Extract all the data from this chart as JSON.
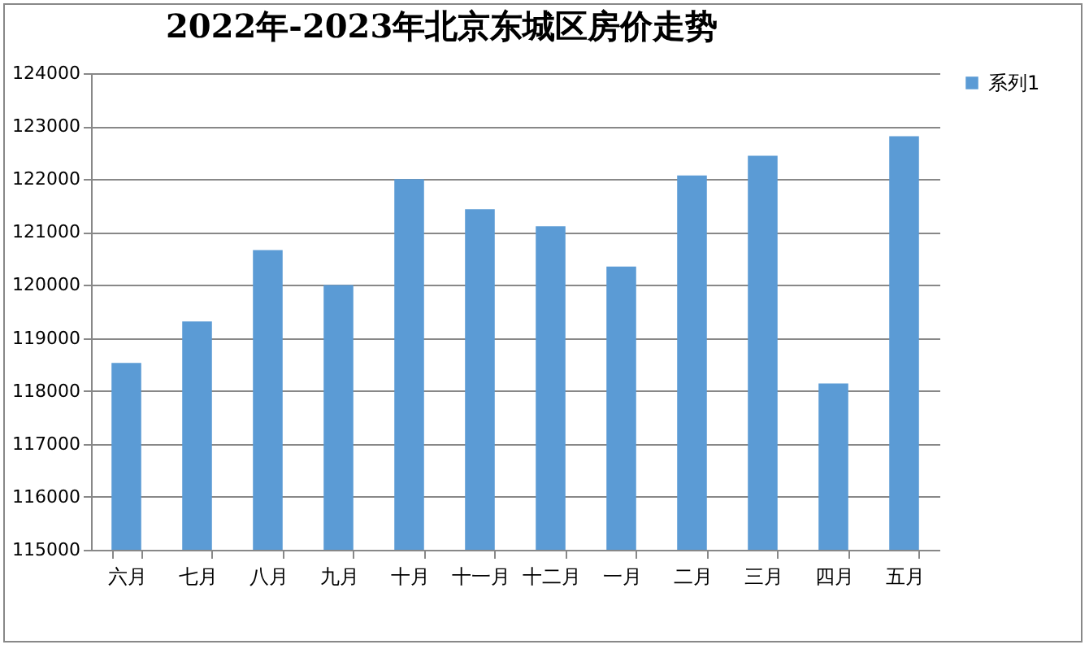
{
  "chart_data": {
    "type": "bar",
    "title": "2022年-2023年北京东城区房价走势",
    "categories": [
      "六月",
      "七月",
      "八月",
      "九月",
      "十月",
      "十一月",
      "十二月",
      "一月",
      "二月",
      "三月",
      "四月",
      "五月"
    ],
    "series": [
      {
        "name": "系列1",
        "color": "#5b9bd5",
        "values": [
          118530,
          119310,
          120660,
          120000,
          122000,
          121430,
          121110,
          120350,
          122070,
          122440,
          118140,
          122810
        ]
      }
    ],
    "ylim": [
      115000,
      124000
    ],
    "yticks": [
      115000,
      116000,
      117000,
      118000,
      119000,
      120000,
      121000,
      122000,
      123000,
      124000
    ],
    "grid": "y",
    "legend": "right"
  }
}
